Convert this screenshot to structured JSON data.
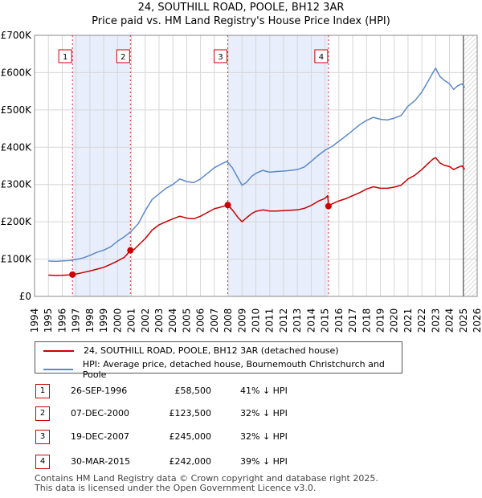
{
  "header": {
    "title": "24, SOUTHILL ROAD, POOLE, BH12 3AR",
    "subtitle": "Price paid vs. HM Land Registry's House Price Index (HPI)"
  },
  "legend": {
    "property_label": "24, SOUTHILL ROAD, POOLE, BH12 3AR (detached house)",
    "hpi_label": "HPI: Average price, detached house, Bournemouth Christchurch and Poole"
  },
  "colors": {
    "property": "#cc0000",
    "hpi": "#5b8ac9",
    "shade": "#e8eefb",
    "grid": "#d6d6d6",
    "future": "#9e9e9e"
  },
  "sales": [
    {
      "num": "1",
      "date": "26-SEP-1996",
      "price": "£58,500",
      "hpi": "41% ↓ HPI"
    },
    {
      "num": "2",
      "date": "07-DEC-2000",
      "price": "£123,500",
      "hpi": "32% ↓ HPI"
    },
    {
      "num": "3",
      "date": "19-DEC-2007",
      "price": "£245,000",
      "hpi": "32% ↓ HPI"
    },
    {
      "num": "4",
      "date": "30-MAR-2015",
      "price": "£242,000",
      "hpi": "39% ↓ HPI"
    }
  ],
  "footer": {
    "line1": "Contains HM Land Registry data © Crown copyright and database right 2025.",
    "line2": "This data is licensed under the Open Government Licence v3.0."
  },
  "chart_data": {
    "type": "line",
    "title": "24, SOUTHILL ROAD, POOLE, BH12 3AR",
    "subtitle": "Price paid vs. HM Land Registry's House Price Index (HPI)",
    "xlim": [
      1994,
      2026
    ],
    "ylim": [
      0,
      700000
    ],
    "y_ticks": [
      0,
      100000,
      200000,
      300000,
      400000,
      500000,
      600000,
      700000
    ],
    "y_tick_labels": [
      "£0",
      "£100K",
      "£200K",
      "£300K",
      "£400K",
      "£500K",
      "£600K",
      "£700K"
    ],
    "x_ticks": [
      1994,
      1995,
      1996,
      1997,
      1998,
      1999,
      2000,
      2001,
      2002,
      2003,
      2004,
      2005,
      2006,
      2007,
      2008,
      2009,
      2010,
      2011,
      2012,
      2013,
      2014,
      2015,
      2016,
      2017,
      2018,
      2019,
      2020,
      2021,
      2022,
      2023,
      2024,
      2025,
      2026
    ],
    "grid": true,
    "future_from": 2025.0,
    "shaded_ranges": [
      [
        1996.74,
        2000.93
      ],
      [
        2007.97,
        2015.25
      ]
    ],
    "series": [
      {
        "name": "HPI: Average price, detached house, Bournemouth Christchurch and Poole",
        "color": "#5b8ac9",
        "x": [
          1995.0,
          1995.5,
          1996.0,
          1996.5,
          1997.0,
          1997.5,
          1998.0,
          1998.5,
          1999.0,
          1999.5,
          2000.0,
          2000.5,
          2001.0,
          2001.5,
          2002.0,
          2002.5,
          2003.0,
          2003.5,
          2004.0,
          2004.5,
          2005.0,
          2005.5,
          2006.0,
          2006.5,
          2007.0,
          2007.5,
          2007.9,
          2008.3,
          2008.7,
          2009.0,
          2009.3,
          2009.7,
          2010.0,
          2010.5,
          2011.0,
          2011.5,
          2012.0,
          2012.5,
          2013.0,
          2013.5,
          2014.0,
          2014.5,
          2015.0,
          2015.5,
          2016.0,
          2016.5,
          2017.0,
          2017.5,
          2018.0,
          2018.5,
          2019.0,
          2019.5,
          2020.0,
          2020.5,
          2021.0,
          2021.5,
          2022.0,
          2022.5,
          2022.8,
          2023.0,
          2023.3,
          2023.6,
          2024.0,
          2024.3,
          2024.6,
          2024.9,
          2025.1
        ],
        "y": [
          95000,
          94000,
          95000,
          96000,
          99000,
          103000,
          110000,
          118000,
          124000,
          133000,
          148000,
          160000,
          175000,
          195000,
          230000,
          260000,
          275000,
          290000,
          300000,
          315000,
          308000,
          305000,
          315000,
          330000,
          345000,
          355000,
          362000,
          345000,
          318000,
          298000,
          305000,
          322000,
          330000,
          338000,
          333000,
          335000,
          336000,
          338000,
          340000,
          347000,
          362000,
          378000,
          392000,
          402000,
          416000,
          430000,
          445000,
          460000,
          472000,
          480000,
          475000,
          473000,
          478000,
          485000,
          510000,
          525000,
          548000,
          580000,
          600000,
          612000,
          590000,
          580000,
          570000,
          555000,
          565000,
          570000,
          560000
        ]
      },
      {
        "name": "24, SOUTHILL ROAD, POOLE, BH12 3AR (detached house)",
        "color": "#cc0000",
        "x": [
          1995.0,
          1995.5,
          1996.0,
          1996.5,
          1996.74,
          1997.0,
          1997.5,
          1998.0,
          1998.5,
          1999.0,
          1999.5,
          2000.0,
          2000.5,
          2000.93,
          2001.2,
          2001.5,
          2002.0,
          2002.5,
          2003.0,
          2003.5,
          2004.0,
          2004.5,
          2005.0,
          2005.5,
          2006.0,
          2006.5,
          2007.0,
          2007.5,
          2007.97,
          2008.3,
          2008.7,
          2009.0,
          2009.3,
          2009.7,
          2010.0,
          2010.5,
          2011.0,
          2011.5,
          2012.0,
          2012.5,
          2013.0,
          2013.5,
          2014.0,
          2014.5,
          2015.0,
          2015.2,
          2015.25,
          2015.5,
          2016.0,
          2016.5,
          2017.0,
          2017.5,
          2018.0,
          2018.5,
          2019.0,
          2019.5,
          2020.0,
          2020.5,
          2021.0,
          2021.5,
          2022.0,
          2022.5,
          2022.8,
          2023.0,
          2023.3,
          2023.6,
          2024.0,
          2024.3,
          2024.6,
          2024.9,
          2025.1
        ],
        "y": [
          57000,
          56000,
          56500,
          57500,
          58500,
          60000,
          64000,
          68000,
          73000,
          78000,
          86000,
          95000,
          105000,
          123500,
          126000,
          137000,
          155000,
          178000,
          192000,
          200000,
          208000,
          215000,
          210000,
          208000,
          215000,
          225000,
          235000,
          240000,
          245000,
          232000,
          212000,
          200000,
          210000,
          222000,
          228000,
          232000,
          229000,
          229000,
          230000,
          231000,
          232000,
          236000,
          244000,
          255000,
          263000,
          270000,
          242000,
          248000,
          256000,
          262000,
          270000,
          278000,
          288000,
          294000,
          290000,
          290000,
          293000,
          298000,
          315000,
          325000,
          340000,
          358000,
          368000,
          372000,
          358000,
          352000,
          348000,
          340000,
          346000,
          350000,
          340000
        ]
      }
    ],
    "sale_points": [
      {
        "label": "1",
        "x": 1996.74,
        "y": 58500
      },
      {
        "label": "2",
        "x": 2000.93,
        "y": 123500
      },
      {
        "label": "3",
        "x": 2007.97,
        "y": 245000
      },
      {
        "label": "4",
        "x": 2015.25,
        "y": 242000
      }
    ]
  }
}
